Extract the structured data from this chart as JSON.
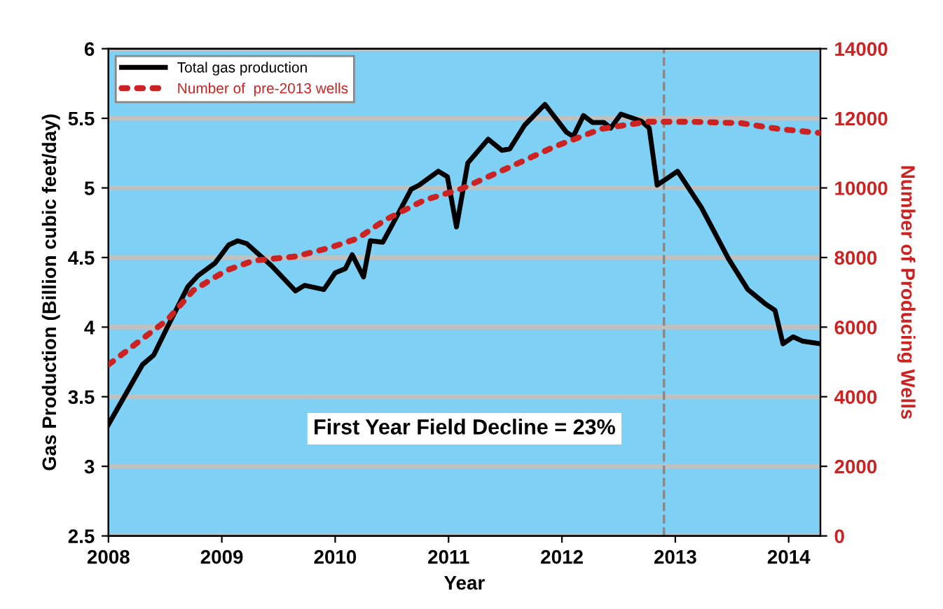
{
  "chart_data": {
    "type": "line",
    "xlabel": "Year",
    "ylabel": "Gas Production (Billion cubic feet/day)",
    "y2label": "Number of Producing Wells",
    "xlim": [
      2008,
      2014.28
    ],
    "xticks": [
      2008,
      2009,
      2010,
      2011,
      2012,
      2013,
      2014
    ],
    "ylim": [
      2.5,
      6
    ],
    "yticks": [
      2.5,
      3,
      3.5,
      4,
      4.5,
      5,
      5.5,
      6
    ],
    "y2lim": [
      0,
      14000
    ],
    "y2ticks": [
      0,
      2000,
      4000,
      6000,
      8000,
      10000,
      12000,
      14000
    ],
    "grid": "y",
    "legend": "top left",
    "ref_lines": [
      {
        "axis": "x",
        "value": 2012.9,
        "color": "#888888",
        "line_style": "dashed"
      }
    ],
    "annotations": [
      "First Year Field Decline = 23%"
    ],
    "series": [
      {
        "name": "Total gas production",
        "color": "#000000",
        "line_style": "solid",
        "x": [
          2008.0,
          2008.3,
          2008.4,
          2008.52,
          2008.7,
          2008.79,
          2008.94,
          2009.06,
          2009.14,
          2009.22,
          2009.44,
          2009.65,
          2009.73,
          2009.9,
          2010.0,
          2010.09,
          2010.15,
          2010.25,
          2010.31,
          2010.42,
          2010.52,
          2010.67,
          2010.74,
          2010.91,
          2010.99,
          2011.07,
          2011.17,
          2011.35,
          2011.47,
          2011.54,
          2011.67,
          2011.85,
          2012.04,
          2012.1,
          2012.19,
          2012.27,
          2012.37,
          2012.43,
          2012.52,
          2012.7,
          2012.77,
          2012.84,
          2012.93,
          2013.02,
          2013.23,
          2013.47,
          2013.64,
          2013.79,
          2013.88,
          2013.95,
          2014.04,
          2014.12,
          2014.28
        ],
        "values": [
          3.3,
          3.73,
          3.8,
          4.0,
          4.29,
          4.37,
          4.46,
          4.59,
          4.62,
          4.6,
          4.44,
          4.26,
          4.3,
          4.27,
          4.39,
          4.42,
          4.52,
          4.36,
          4.62,
          4.61,
          4.76,
          4.99,
          5.02,
          5.12,
          5.08,
          4.72,
          5.18,
          5.35,
          5.27,
          5.28,
          5.45,
          5.6,
          5.4,
          5.37,
          5.52,
          5.47,
          5.47,
          5.43,
          5.53,
          5.48,
          5.43,
          5.02,
          5.07,
          5.12,
          4.86,
          4.49,
          4.27,
          4.17,
          4.12,
          3.88,
          3.93,
          3.9,
          3.88
        ]
      },
      {
        "name": "Number of  pre-2013 wells",
        "color": "#cc2222",
        "line_style": "dotted",
        "axis": "y2",
        "x": [
          2008.0,
          2008.52,
          2008.75,
          2009.04,
          2009.28,
          2009.65,
          2009.94,
          2010.2,
          2010.44,
          2010.78,
          2011.11,
          2011.52,
          2011.93,
          2012.35,
          2012.75,
          2013.16,
          2013.58,
          2013.9,
          2014.27
        ],
        "values": [
          4920,
          6210,
          7060,
          7630,
          7910,
          8030,
          8270,
          8550,
          9080,
          9640,
          9970,
          10570,
          11180,
          11700,
          11900,
          11900,
          11860,
          11700,
          11580
        ]
      }
    ]
  }
}
